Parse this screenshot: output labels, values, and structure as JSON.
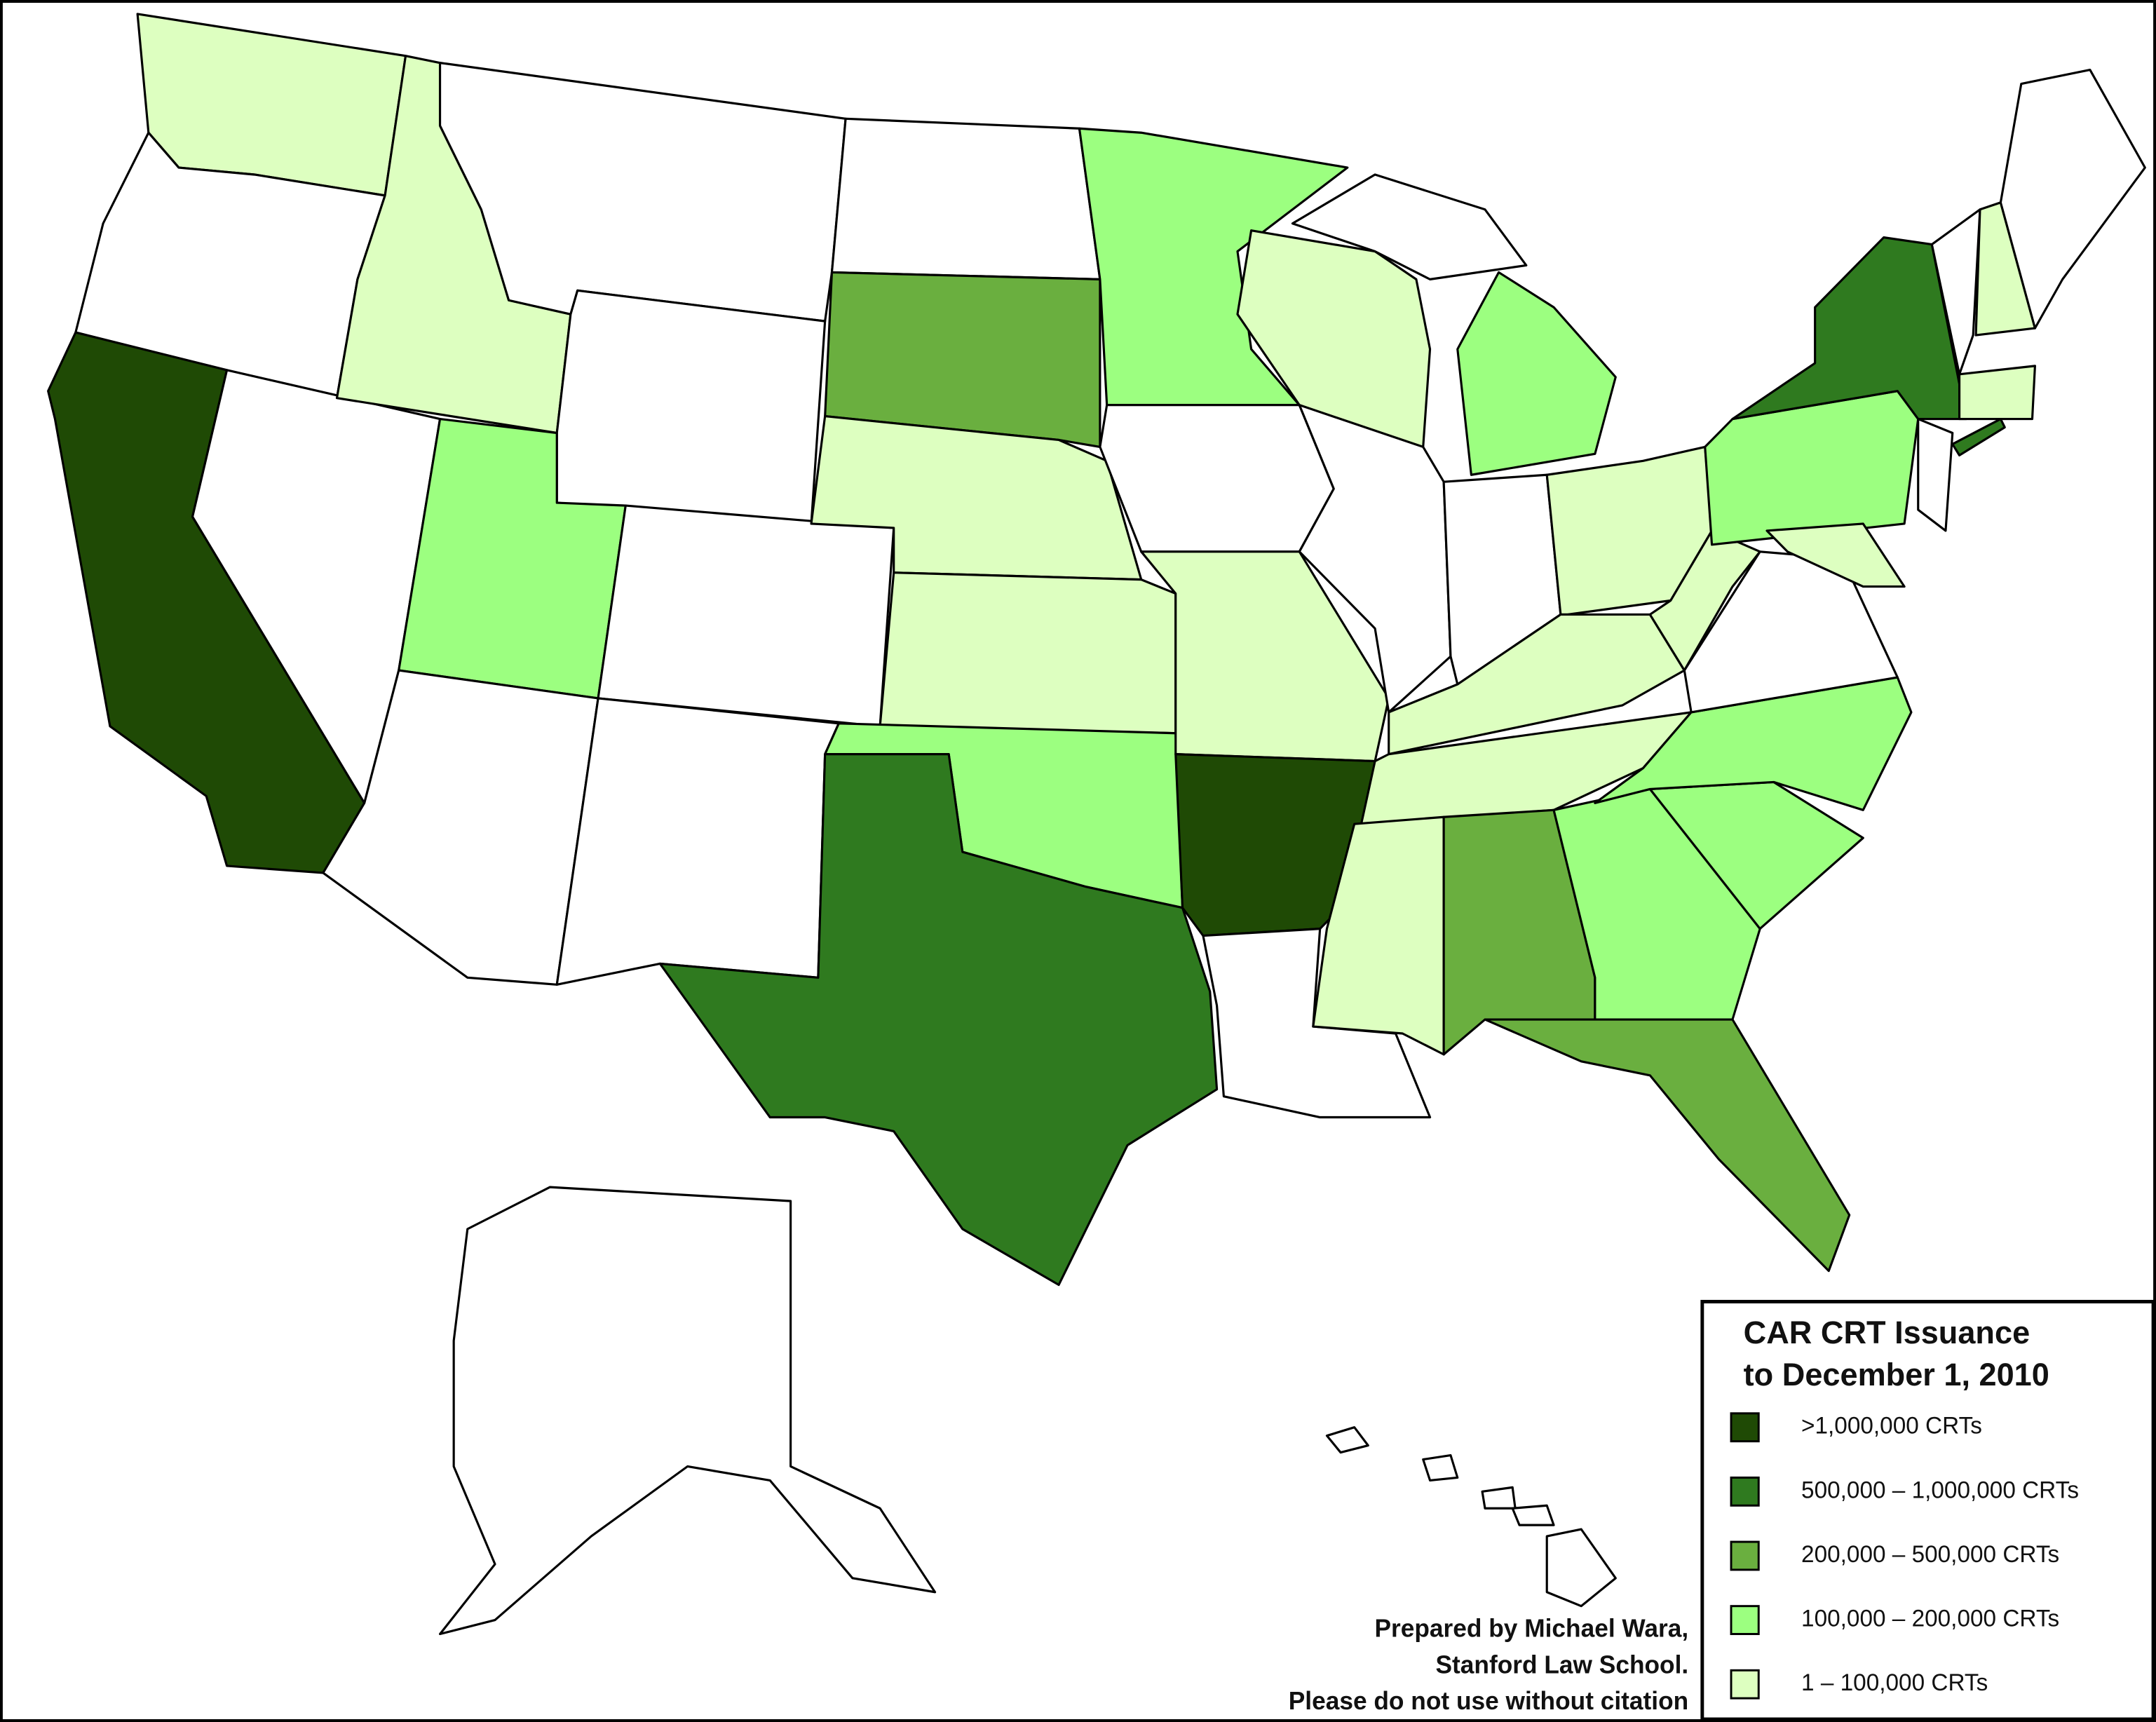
{
  "legend": {
    "title_lines": [
      "CAR CRT Issuance",
      "to December 1, 2010"
    ],
    "items": [
      {
        "label": ">1,000,000 CRTs",
        "color": "#1f4a05"
      },
      {
        "label": "500,000 – 1,000,000 CRTs",
        "color": "#2f7a1f"
      },
      {
        "label": "200,000 – 500,000 CRTs",
        "color": "#6aaf3f"
      },
      {
        "label": "100,000 – 200,000 CRTs",
        "color": "#9cff80"
      },
      {
        "label": "1 – 100,000 CRTs",
        "color": "#ddffc0"
      }
    ]
  },
  "credit": {
    "lines": [
      "Prepared by Michael Wara,",
      "Stanford Law School.",
      "Please do not use without citation"
    ]
  }
}
